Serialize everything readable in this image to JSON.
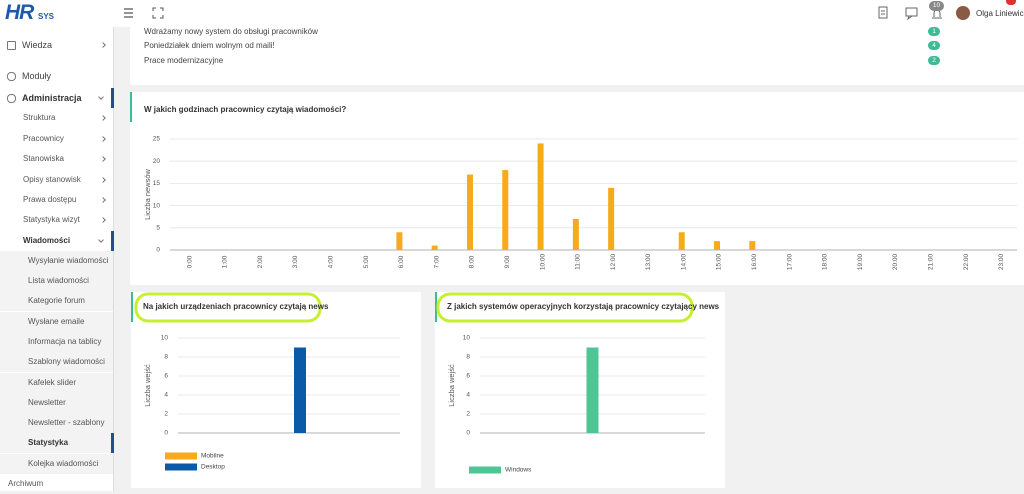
{
  "logo": {
    "main": "HR",
    "sub": "SYS"
  },
  "header": {
    "notifications": "10",
    "user": "Olga Liniewicz"
  },
  "sidebar": {
    "items": [
      "Wiedza",
      "Moduły",
      "Administracja",
      "Struktura",
      "Pracownicy",
      "Stanowiska",
      "Opisy stanowisk",
      "Prawa dostępu",
      "Statystyka wizyt",
      "Wiadomości",
      "Wysyłanie wiadomości",
      "Lista wiadomości",
      "Kategorie forum",
      "Wysłane emaile",
      "Informacja na tablicy",
      "Szablony wiadomości",
      "Kafelek slider",
      "Newsletter",
      "Newsletter - szablony",
      "Statystyka",
      "Kolejka wiadomości",
      "Archiwum"
    ]
  },
  "news": [
    {
      "title": "Wdrażamy nowy system do obsługi pracowników",
      "count": "1"
    },
    {
      "title": "Poniedziałek dniem wolnym od maili!",
      "count": "4"
    },
    {
      "title": "Prace modernizacyjne",
      "count": "2"
    }
  ],
  "chart_data": [
    {
      "type": "bar",
      "title": "W jakich godzinach pracownicy czytają wiadomości?",
      "y_label": "Liczba newsów",
      "categories": [
        "0:00",
        "1:00",
        "2:00",
        "3:00",
        "4:00",
        "5:00",
        "6:00",
        "7:00",
        "8:00",
        "9:00",
        "10:00",
        "11:00",
        "12:00",
        "13:00",
        "14:00",
        "15:00",
        "16:00",
        "17:00",
        "18:00",
        "19:00",
        "20:00",
        "21:00",
        "22:00",
        "23:00"
      ],
      "values": [
        0,
        0,
        0,
        0,
        0,
        0,
        4,
        1,
        17,
        18,
        24,
        7,
        14,
        0,
        4,
        2,
        2,
        0,
        0,
        0,
        0,
        0,
        0,
        0
      ],
      "color": "#f7ab1b",
      "ylim": [
        0,
        25
      ],
      "yticks": [
        0,
        5,
        10,
        15,
        20,
        25
      ],
      "grid": true
    },
    {
      "type": "bar",
      "title": "Na jakich urządzeniach pracownicy czytają news",
      "y_label": "Liczba wejść",
      "series": [
        {
          "name": "Mobilne",
          "color": "#f7ab1b",
          "values": [
            0
          ]
        },
        {
          "name": "Desktop",
          "color": "#0b5aa8",
          "values": [
            9
          ]
        }
      ],
      "ylim": [
        0,
        10
      ],
      "yticks": [
        0,
        2,
        4,
        6,
        8,
        10
      ],
      "grid": true
    },
    {
      "type": "bar",
      "title": "Z jakich systemów operacyjnych korzystają pracownicy czytający news",
      "y_label": "Liczba wejść",
      "series": [
        {
          "name": "Windows",
          "color": "#4fc495",
          "values": [
            9
          ]
        }
      ],
      "ylim": [
        0,
        10
      ],
      "yticks": [
        0,
        2,
        4,
        6,
        8,
        10
      ],
      "grid": true
    }
  ]
}
